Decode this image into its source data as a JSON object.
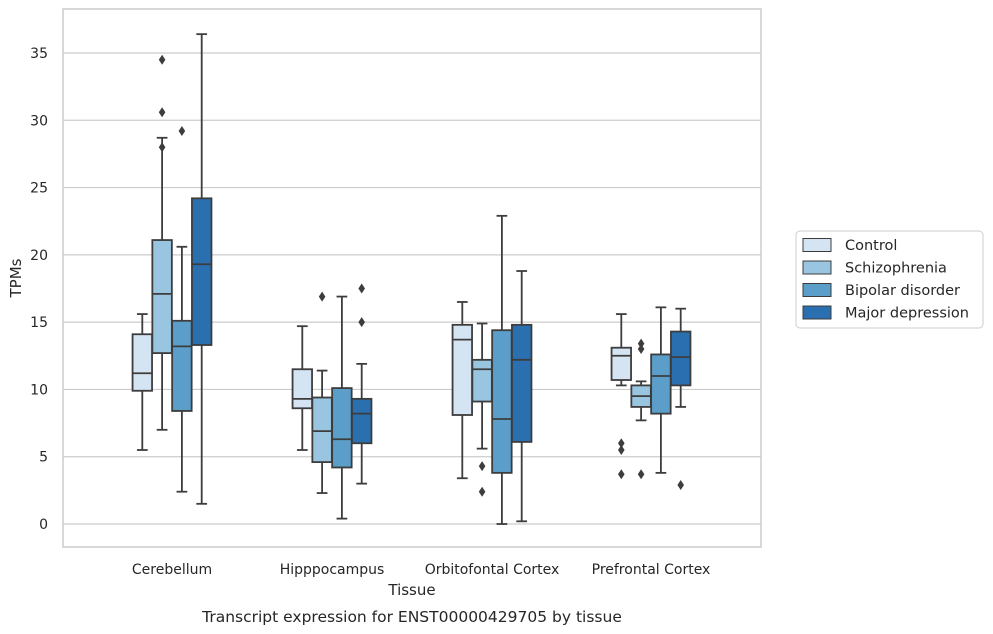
{
  "chart_data": {
    "type": "box",
    "caption": "Transcript expression for ENST00000429705 by tissue",
    "xlabel": "Tissue",
    "ylabel": "TPMs",
    "ylim": [
      -1.8,
      38.0
    ],
    "yticks": [
      0,
      5,
      10,
      15,
      20,
      25,
      30,
      35
    ],
    "grid": true,
    "legend_position": "right",
    "categories": [
      "Cerebellum",
      "Hipppocampus",
      "Orbitofontal Cortex",
      "Prefrontal Cortex"
    ],
    "series": [
      {
        "name": "Control",
        "color": "#d5e4f2",
        "boxes": [
          {
            "q1": 9.9,
            "median": 11.2,
            "q3": 14.1,
            "whisker_low": 5.5,
            "whisker_high": 15.6,
            "outliers": []
          },
          {
            "q1": 8.6,
            "median": 9.3,
            "q3": 11.5,
            "whisker_low": 5.5,
            "whisker_high": 14.7,
            "outliers": []
          },
          {
            "q1": 8.1,
            "median": 13.7,
            "q3": 14.8,
            "whisker_low": 3.4,
            "whisker_high": 16.5,
            "outliers": []
          },
          {
            "q1": 10.7,
            "median": 12.5,
            "q3": 13.1,
            "whisker_low": 10.3,
            "whisker_high": 15.6,
            "outliers": [
              6.0,
              5.5,
              3.7
            ]
          }
        ]
      },
      {
        "name": "Schizophrenia",
        "color": "#9ac5e0",
        "boxes": [
          {
            "q1": 12.7,
            "median": 17.1,
            "q3": 21.1,
            "whisker_low": 7.0,
            "whisker_high": 28.7,
            "outliers": [
              34.5,
              30.6,
              28.0
            ]
          },
          {
            "q1": 4.6,
            "median": 6.9,
            "q3": 9.4,
            "whisker_low": 2.3,
            "whisker_high": 11.4,
            "outliers": [
              16.9
            ]
          },
          {
            "q1": 9.1,
            "median": 11.5,
            "q3": 12.2,
            "whisker_low": 5.6,
            "whisker_high": 14.9,
            "outliers": [
              4.3,
              2.4
            ]
          },
          {
            "q1": 8.7,
            "median": 9.5,
            "q3": 10.3,
            "whisker_low": 7.7,
            "whisker_high": 10.6,
            "outliers": [
              13.4,
              13.0,
              3.7
            ]
          }
        ]
      },
      {
        "name": "Bipolar disorder",
        "color": "#5b9ec9",
        "boxes": [
          {
            "q1": 8.4,
            "median": 13.2,
            "q3": 15.1,
            "whisker_low": 2.4,
            "whisker_high": 20.6,
            "outliers": [
              29.2
            ]
          },
          {
            "q1": 4.2,
            "median": 6.3,
            "q3": 10.1,
            "whisker_low": 0.4,
            "whisker_high": 16.9,
            "outliers": []
          },
          {
            "q1": 3.8,
            "median": 7.8,
            "q3": 14.4,
            "whisker_low": 0.0,
            "whisker_high": 22.9,
            "outliers": []
          },
          {
            "q1": 8.2,
            "median": 11.0,
            "q3": 12.6,
            "whisker_low": 3.8,
            "whisker_high": 16.1,
            "outliers": []
          }
        ]
      },
      {
        "name": "Major depression",
        "color": "#2a6fb0",
        "boxes": [
          {
            "q1": 13.3,
            "median": 19.3,
            "q3": 24.2,
            "whisker_low": 1.5,
            "whisker_high": 36.4,
            "outliers": []
          },
          {
            "q1": 6.0,
            "median": 8.2,
            "q3": 9.3,
            "whisker_low": 3.0,
            "whisker_high": 11.9,
            "outliers": [
              17.5,
              15.0
            ]
          },
          {
            "q1": 6.1,
            "median": 12.2,
            "q3": 14.8,
            "whisker_low": 0.2,
            "whisker_high": 18.8,
            "outliers": []
          },
          {
            "q1": 10.3,
            "median": 12.4,
            "q3": 14.3,
            "whisker_low": 8.7,
            "whisker_high": 16.0,
            "outliers": [
              2.9
            ]
          }
        ]
      }
    ]
  }
}
